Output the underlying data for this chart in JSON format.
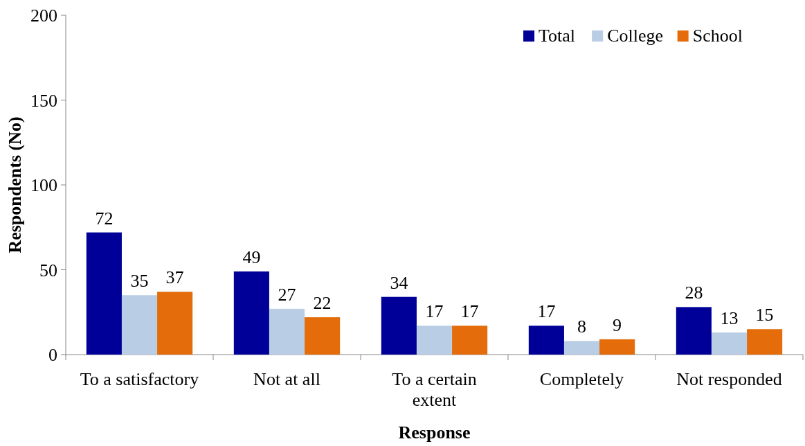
{
  "chart_data": {
    "type": "bar",
    "xlabel": "Response",
    "ylabel": "Respondents (No)",
    "categories": [
      "To a satisfactory",
      "Not at all",
      "To a certain extent",
      "Completely",
      "Not responded"
    ],
    "series": [
      {
        "name": "Total",
        "color": "#000099",
        "values": [
          72,
          49,
          34,
          17,
          28
        ]
      },
      {
        "name": "College",
        "color": "#b9cde5",
        "values": [
          35,
          27,
          17,
          8,
          13
        ]
      },
      {
        "name": "School",
        "color": "#e46c0a",
        "values": [
          37,
          22,
          17,
          9,
          15
        ]
      }
    ],
    "ylim": [
      0,
      200
    ],
    "yticks": [
      0,
      50,
      100,
      150,
      200
    ],
    "grid": false,
    "legend": "top right",
    "data_labels": true
  }
}
